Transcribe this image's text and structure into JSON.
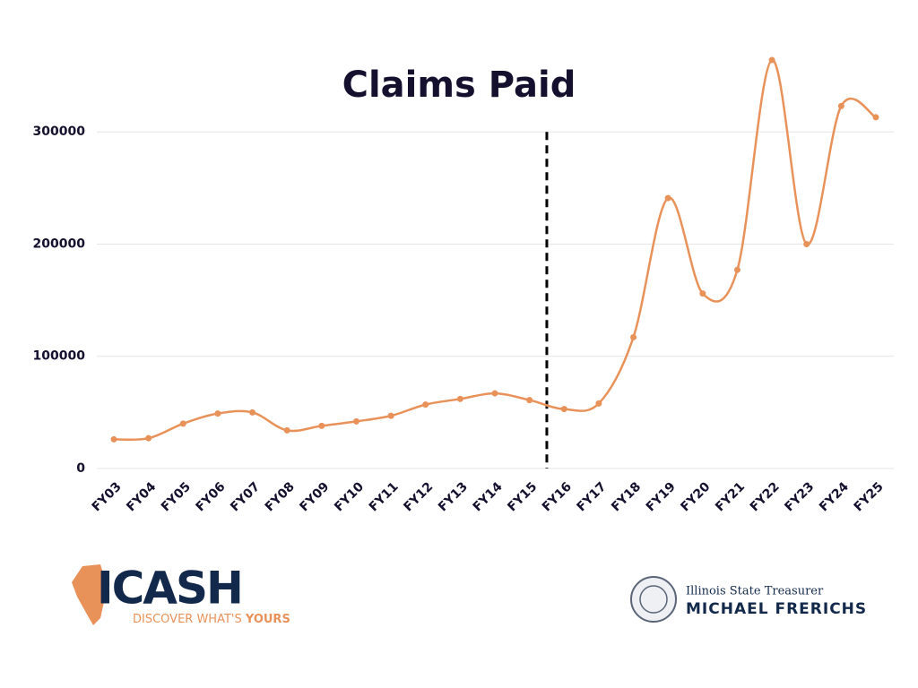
{
  "chart_data": {
    "type": "line",
    "title": "Claims Paid",
    "categories": [
      "FY03",
      "FY04",
      "FY05",
      "FY06",
      "FY07",
      "FY08",
      "FY09",
      "FY10",
      "FY11",
      "FY12",
      "FY13",
      "FY14",
      "FY15",
      "FY16",
      "FY17",
      "FY18",
      "FY19",
      "FY20",
      "FY21",
      "FY22",
      "FY23",
      "FY24",
      "FY25"
    ],
    "series": [
      {
        "color": "#e8925a",
        "values": [
          26000,
          27000,
          40000,
          49000,
          50000,
          34000,
          38000,
          42000,
          47000,
          57000,
          62000,
          67000,
          61000,
          53000,
          58000,
          117000,
          241000,
          156000,
          177000,
          364000,
          200000,
          323000,
          313000
        ]
      }
    ],
    "ylim": [
      0,
      380000
    ],
    "yticks": [
      0,
      100000,
      200000,
      300000
    ],
    "grid": true,
    "smooth": true,
    "divider_after": "FY15"
  },
  "footer": {
    "logo_text": "ICASH",
    "tagline_main": "DISCOVER WHAT'S",
    "tagline_emphasis": "YOURS",
    "office": "Illinois State Treasurer",
    "name": "MICHAEL FRERICHS"
  }
}
